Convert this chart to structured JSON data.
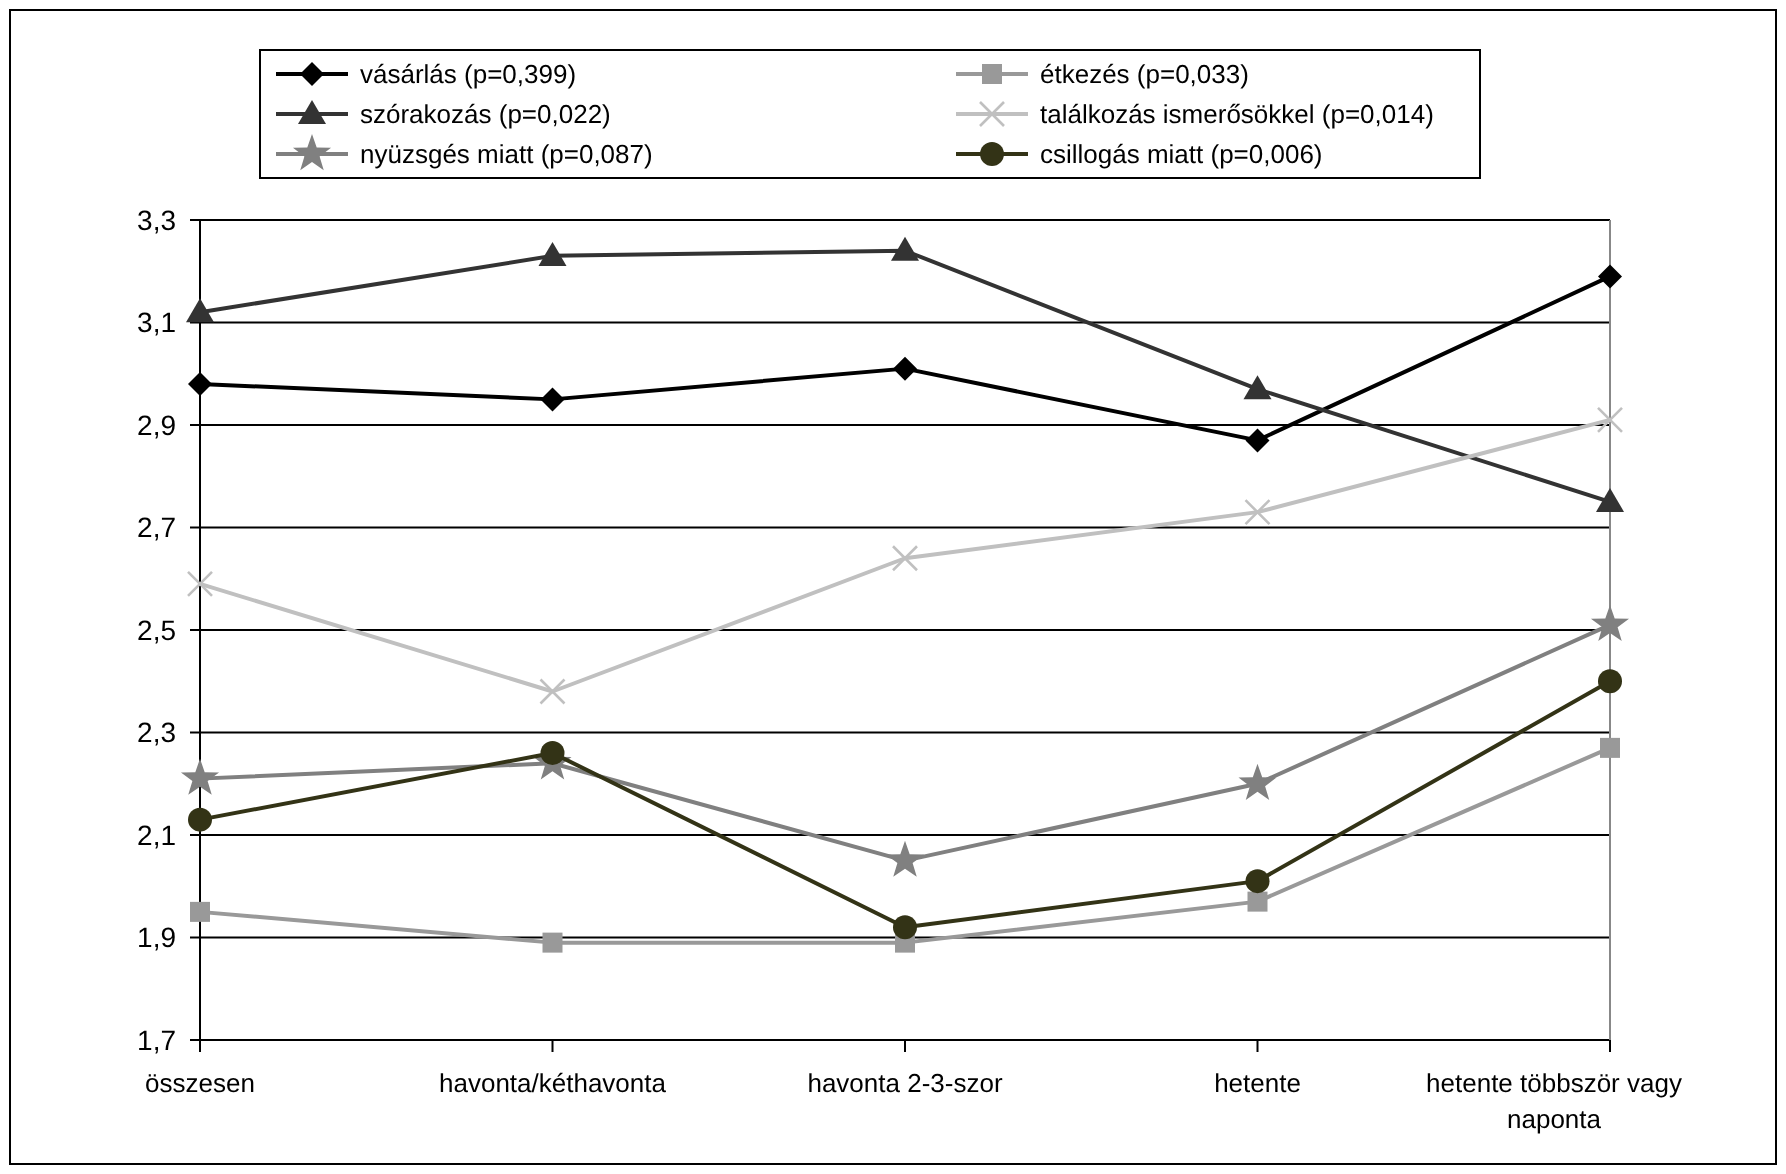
{
  "chart_data": {
    "type": "line",
    "categories": [
      "összesen",
      "havonta/kéthavonta",
      "havonta 2-3-szor",
      "hetente",
      "hetente többször vagy naponta"
    ],
    "ylim": [
      1.7,
      3.3
    ],
    "yticks": [
      {
        "value": 1.7,
        "label": "1,7"
      },
      {
        "value": 1.9,
        "label": "1,9"
      },
      {
        "value": 2.1,
        "label": "2,1"
      },
      {
        "value": 2.3,
        "label": "2,3"
      },
      {
        "value": 2.5,
        "label": "2,5"
      },
      {
        "value": 2.7,
        "label": "2,7"
      },
      {
        "value": 2.9,
        "label": "2,9"
      },
      {
        "value": 3.1,
        "label": "3,1"
      },
      {
        "value": 3.3,
        "label": "3,3"
      }
    ],
    "grid": "y",
    "legend": "top",
    "line_style": "solid",
    "series": [
      {
        "name": "vásárlás (p=0,399)",
        "color": "#000000",
        "marker": "diamond",
        "values": [
          2.98,
          2.95,
          3.01,
          2.87,
          3.19
        ]
      },
      {
        "name": "étkezés (p=0,033)",
        "color": "#999999",
        "marker": "square",
        "values": [
          1.95,
          1.89,
          1.89,
          1.97,
          2.27
        ]
      },
      {
        "name": "szórakozás (p=0,022)",
        "color": "#333333",
        "marker": "triangle",
        "values": [
          3.12,
          3.23,
          3.24,
          2.97,
          2.75
        ]
      },
      {
        "name": "találkozás ismerősökkel (p=0,014)",
        "color": "#c0c0c0",
        "marker": "cross",
        "values": [
          2.59,
          2.38,
          2.64,
          2.73,
          2.91
        ]
      },
      {
        "name": "nyüzsgés miatt (p=0,087)",
        "color": "#808080",
        "marker": "star",
        "values": [
          2.21,
          2.24,
          2.05,
          2.2,
          2.51
        ]
      },
      {
        "name": "csillogás miatt (p=0,006)",
        "color": "#333316",
        "marker": "circle",
        "values": [
          2.13,
          2.26,
          1.92,
          2.01,
          2.4
        ]
      }
    ]
  }
}
